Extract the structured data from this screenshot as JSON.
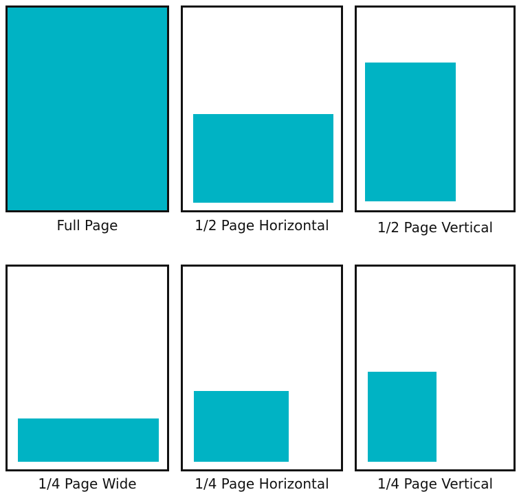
{
  "colors": {
    "fill": "#00b3c4",
    "border": "#111111",
    "background": "#ffffff"
  },
  "layouts": [
    {
      "label": "Full Page"
    },
    {
      "label": "1/2 Page Horizontal"
    },
    {
      "label": "1/2 Page Vertical"
    },
    {
      "label": "1/4 Page Wide"
    },
    {
      "label": "1/4 Page Horizontal"
    },
    {
      "label": "1/4 Page Vertical"
    }
  ]
}
